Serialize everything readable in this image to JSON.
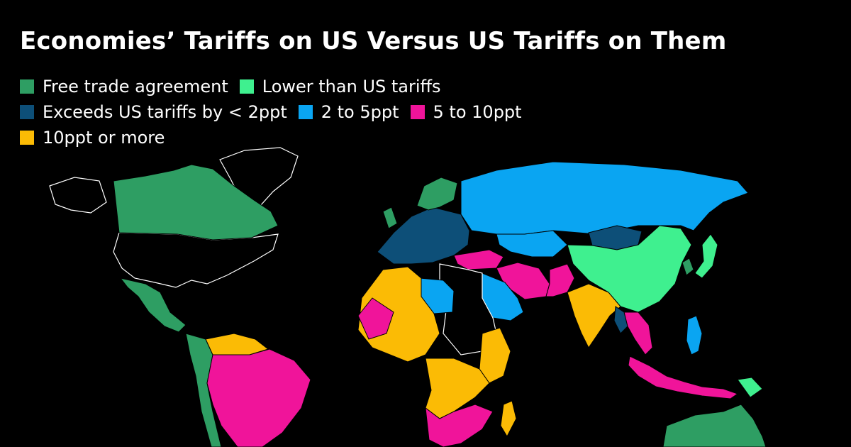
{
  "title": "Economies’ Tariffs on US Versus US Tariffs on Them",
  "legend": [
    [
      {
        "label": "Free trade agreement",
        "color": "#2e9e63"
      },
      {
        "label": "Lower than US tariffs",
        "color": "#3ff08f"
      }
    ],
    [
      {
        "label": "Exceeds US tariffs by < 2ppt",
        "color": "#0d4f78"
      },
      {
        "label": "2 to 5ppt",
        "color": "#0aa5f2"
      },
      {
        "label": "5 to 10ppt",
        "color": "#f0149a"
      }
    ],
    [
      {
        "label": "10ppt or more",
        "color": "#fbbb05"
      }
    ]
  ],
  "regions": [
    {
      "name": "canada",
      "category": "Free trade agreement"
    },
    {
      "name": "mexico",
      "category": "Free trade agreement"
    },
    {
      "name": "australia",
      "category": "Free trade agreement"
    },
    {
      "name": "south-korea",
      "category": "Free trade agreement"
    },
    {
      "name": "china",
      "category": "Lower than US tariffs"
    },
    {
      "name": "japan",
      "category": "Lower than US tariffs"
    },
    {
      "name": "european-union",
      "category": "Exceeds US tariffs by < 2ppt"
    },
    {
      "name": "russia",
      "category": "2 to 5ppt"
    },
    {
      "name": "saudi-arabia",
      "category": "2 to 5ppt"
    },
    {
      "name": "brazil",
      "category": "5 to 10ppt"
    },
    {
      "name": "iran",
      "category": "5 to 10ppt"
    },
    {
      "name": "india",
      "category": "10ppt or more"
    },
    {
      "name": "west-africa",
      "category": "10ppt or more"
    }
  ]
}
